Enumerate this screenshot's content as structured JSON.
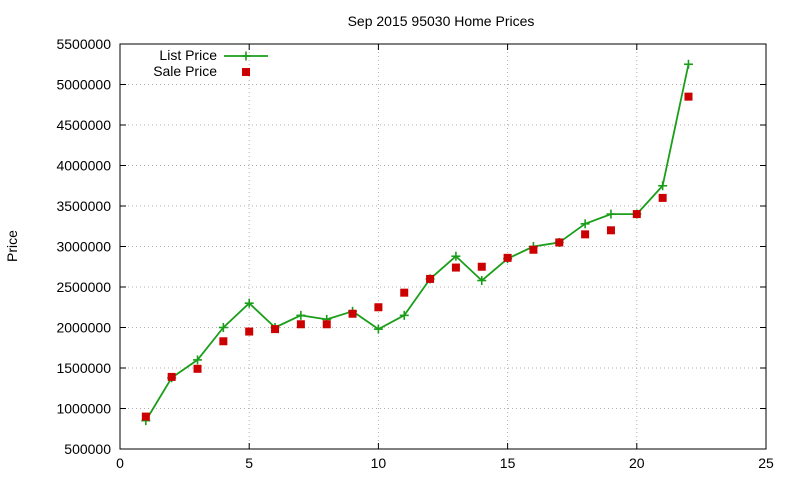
{
  "chart_data": {
    "type": "line",
    "title": "Sep 2015 95030 Home Prices",
    "xlabel": "",
    "ylabel": "Price",
    "xlim": [
      0,
      25
    ],
    "ylim": [
      500000,
      5500000
    ],
    "x_ticks": [
      0,
      5,
      10,
      15,
      20,
      25
    ],
    "y_ticks": [
      500000,
      1000000,
      1500000,
      2000000,
      2500000,
      3000000,
      3500000,
      4000000,
      4500000,
      5000000,
      5500000
    ],
    "grid": true,
    "legend_position": "top-left",
    "series": [
      {
        "name": "List Price",
        "style": "line-with-plus-markers",
        "color": "#1a9e1a",
        "points": [
          [
            1,
            850000
          ],
          [
            2,
            1380000
          ],
          [
            3,
            1600000
          ],
          [
            4,
            2000000
          ],
          [
            5,
            2300000
          ],
          [
            6,
            2000000
          ],
          [
            7,
            2150000
          ],
          [
            8,
            2100000
          ],
          [
            9,
            2200000
          ],
          [
            10,
            1980000
          ],
          [
            11,
            2150000
          ],
          [
            12,
            2600000
          ],
          [
            13,
            2880000
          ],
          [
            14,
            2580000
          ],
          [
            15,
            2850000
          ],
          [
            16,
            3000000
          ],
          [
            17,
            3050000
          ],
          [
            18,
            3280000
          ],
          [
            19,
            3400000
          ],
          [
            20,
            3400000
          ],
          [
            21,
            3750000
          ],
          [
            22,
            5250000
          ]
        ]
      },
      {
        "name": "Sale Price",
        "style": "square-markers",
        "color": "#cc0000",
        "points": [
          [
            1,
            900000
          ],
          [
            2,
            1390000
          ],
          [
            3,
            1490000
          ],
          [
            4,
            1830000
          ],
          [
            5,
            1950000
          ],
          [
            6,
            1980000
          ],
          [
            7,
            2040000
          ],
          [
            8,
            2040000
          ],
          [
            9,
            2170000
          ],
          [
            10,
            2250000
          ],
          [
            11,
            2430000
          ],
          [
            12,
            2600000
          ],
          [
            13,
            2740000
          ],
          [
            14,
            2750000
          ],
          [
            15,
            2860000
          ],
          [
            16,
            2960000
          ],
          [
            17,
            3050000
          ],
          [
            18,
            3150000
          ],
          [
            19,
            3200000
          ],
          [
            20,
            3400000
          ],
          [
            21,
            3600000
          ],
          [
            22,
            4850000
          ]
        ]
      }
    ]
  }
}
